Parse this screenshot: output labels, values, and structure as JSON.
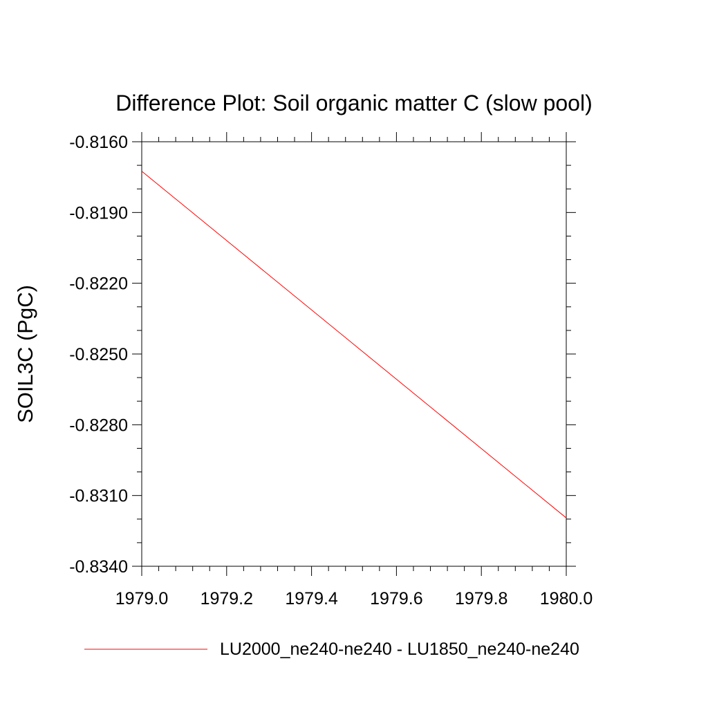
{
  "chart_data": {
    "type": "line",
    "title": "Difference Plot: Soil organic matter C (slow pool)",
    "xlabel": "",
    "ylabel": "SOIL3C  (PgC)",
    "xlim": [
      1979.0,
      1980.0
    ],
    "ylim": [
      -0.834,
      -0.816
    ],
    "x_ticks": [
      1979.0,
      1979.2,
      1979.4,
      1979.6,
      1979.8,
      1980.0
    ],
    "x_tick_labels": [
      "1979.0",
      "1979.2",
      "1979.4",
      "1979.6",
      "1979.8",
      "1980.0"
    ],
    "y_ticks": [
      -0.816,
      -0.819,
      -0.822,
      -0.825,
      -0.828,
      -0.831,
      -0.834
    ],
    "y_tick_labels": [
      "-0.8160",
      "-0.8190",
      "-0.8220",
      "-0.8250",
      "-0.8280",
      "-0.8310",
      "-0.8340"
    ],
    "grid": false,
    "legend_position": "bottom",
    "series": [
      {
        "name": "LU2000_ne240-ne240 - LU1850_ne240-ne240",
        "color": "#ff0000",
        "x": [
          1979.0,
          1980.0
        ],
        "y": [
          -0.81725,
          -0.83195
        ]
      }
    ]
  }
}
